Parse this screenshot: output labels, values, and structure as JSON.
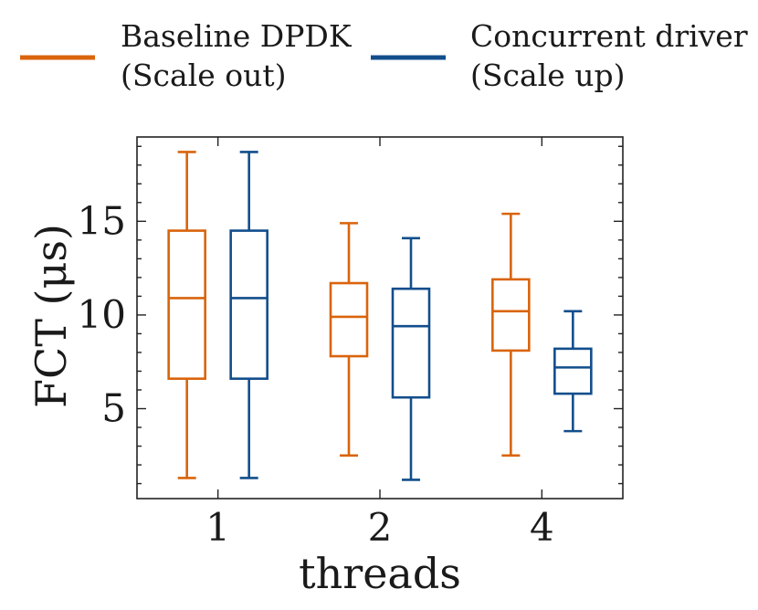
{
  "chart_data": {
    "type": "box",
    "title": "",
    "xlabel": "threads",
    "ylabel": "FCT (μs)",
    "ylim": [
      0.2,
      19.5
    ],
    "yticks": [
      5,
      10,
      15
    ],
    "categories": [
      "1",
      "2",
      "4"
    ],
    "grid": false,
    "legend": {
      "placement": "top",
      "entries": [
        {
          "line1": "Baseline DPDK",
          "line2": "(Scale out)"
        },
        {
          "line1": "Concurrent driver",
          "line2": "(Scale up)"
        }
      ]
    },
    "series": [
      {
        "name": "Baseline DPDK (Scale out)",
        "color": "#d9640c",
        "boxes": [
          {
            "whislo": 1.3,
            "q1": 6.6,
            "med": 10.9,
            "q3": 14.5,
            "whishi": 18.7
          },
          {
            "whislo": 2.5,
            "q1": 7.8,
            "med": 9.9,
            "q3": 11.7,
            "whishi": 14.9
          },
          {
            "whislo": 2.5,
            "q1": 8.1,
            "med": 10.2,
            "q3": 11.9,
            "whishi": 15.4
          }
        ]
      },
      {
        "name": "Concurrent driver (Scale up)",
        "color": "#124e8c",
        "boxes": [
          {
            "whislo": 1.3,
            "q1": 6.6,
            "med": 10.9,
            "q3": 14.5,
            "whishi": 18.7
          },
          {
            "whislo": 1.2,
            "q1": 5.6,
            "med": 9.4,
            "q3": 11.4,
            "whishi": 14.1
          },
          {
            "whislo": 3.8,
            "q1": 5.8,
            "med": 7.2,
            "q3": 8.2,
            "whishi": 10.2
          }
        ]
      }
    ]
  }
}
